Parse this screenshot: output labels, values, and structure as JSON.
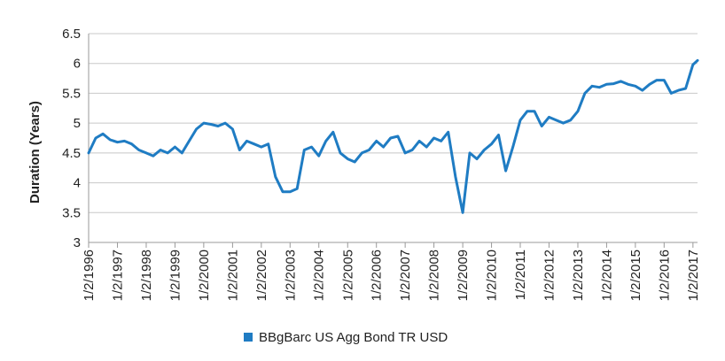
{
  "chart_data": {
    "type": "line",
    "title": "",
    "xlabel": "",
    "ylabel": "Duration (Years)",
    "ylim": [
      3,
      6.5
    ],
    "yticks": [
      "3",
      "3.5",
      "4",
      "4.5",
      "5",
      "5.5",
      "6",
      "6.5"
    ],
    "grid": true,
    "legend_placement": "bottom",
    "x_tick_labels": [
      "1/2/1996",
      "1/2/1997",
      "1/2/1998",
      "1/2/1999",
      "1/2/2000",
      "1/2/2001",
      "1/2/2002",
      "1/2/2003",
      "1/2/2004",
      "1/2/2005",
      "1/2/2006",
      "1/2/2007",
      "1/2/2008",
      "1/2/2009",
      "1/2/2010",
      "1/2/2011",
      "1/2/2012",
      "1/2/2013",
      "1/2/2014",
      "1/2/2015",
      "1/2/2016",
      "1/2/2017"
    ],
    "series": [
      {
        "name": "BBgBarc US Agg Bond TR USD",
        "color": "#1f7cc3",
        "x": [
          "1996-01-02",
          "1996-04-01",
          "1996-07-01",
          "1996-10-01",
          "1997-01-02",
          "1997-04-01",
          "1997-07-01",
          "1997-10-01",
          "1998-01-02",
          "1998-04-01",
          "1998-07-01",
          "1998-10-01",
          "1999-01-02",
          "1999-04-01",
          "1999-07-01",
          "1999-10-01",
          "2000-01-02",
          "2000-04-01",
          "2000-07-01",
          "2000-10-01",
          "2001-01-02",
          "2001-04-01",
          "2001-07-01",
          "2001-10-01",
          "2002-01-02",
          "2002-04-01",
          "2002-07-01",
          "2002-10-01",
          "2003-01-02",
          "2003-04-01",
          "2003-07-01",
          "2003-10-01",
          "2004-01-02",
          "2004-04-01",
          "2004-07-01",
          "2004-10-01",
          "2005-01-02",
          "2005-04-01",
          "2005-07-01",
          "2005-10-01",
          "2006-01-02",
          "2006-04-01",
          "2006-07-01",
          "2006-10-01",
          "2007-01-02",
          "2007-04-01",
          "2007-07-01",
          "2007-10-01",
          "2008-01-02",
          "2008-04-01",
          "2008-07-01",
          "2008-10-01",
          "2009-01-02",
          "2009-04-01",
          "2009-07-01",
          "2009-10-01",
          "2010-01-02",
          "2010-04-01",
          "2010-07-01",
          "2010-10-01",
          "2011-01-02",
          "2011-04-01",
          "2011-07-01",
          "2011-10-01",
          "2012-01-02",
          "2012-04-01",
          "2012-07-01",
          "2012-10-01",
          "2013-01-02",
          "2013-04-01",
          "2013-07-01",
          "2013-10-01",
          "2014-01-02",
          "2014-04-01",
          "2014-07-01",
          "2014-10-01",
          "2015-01-02",
          "2015-04-01",
          "2015-07-01",
          "2015-10-01",
          "2016-01-02",
          "2016-04-01",
          "2016-07-01",
          "2016-10-01",
          "2017-01-02",
          "2017-03-01"
        ],
        "values": [
          4.5,
          4.75,
          4.82,
          4.72,
          4.68,
          4.7,
          4.65,
          4.55,
          4.5,
          4.45,
          4.55,
          4.5,
          4.6,
          4.5,
          4.7,
          4.9,
          5.0,
          4.98,
          4.95,
          5.0,
          4.9,
          4.55,
          4.7,
          4.65,
          4.6,
          4.65,
          4.1,
          3.85,
          3.85,
          3.9,
          4.55,
          4.6,
          4.45,
          4.7,
          4.85,
          4.5,
          4.4,
          4.35,
          4.5,
          4.55,
          4.7,
          4.6,
          4.75,
          4.78,
          4.5,
          4.55,
          4.7,
          4.6,
          4.75,
          4.7,
          4.85,
          4.1,
          3.5,
          4.5,
          4.4,
          4.55,
          4.65,
          4.8,
          4.2,
          4.6,
          5.05,
          5.2,
          5.2,
          4.95,
          5.1,
          5.05,
          5.0,
          5.05,
          5.2,
          5.5,
          5.62,
          5.6,
          5.65,
          5.66,
          5.7,
          5.65,
          5.62,
          5.55,
          5.65,
          5.72,
          5.72,
          5.5,
          5.55,
          5.58,
          5.98,
          6.05
        ]
      }
    ]
  }
}
